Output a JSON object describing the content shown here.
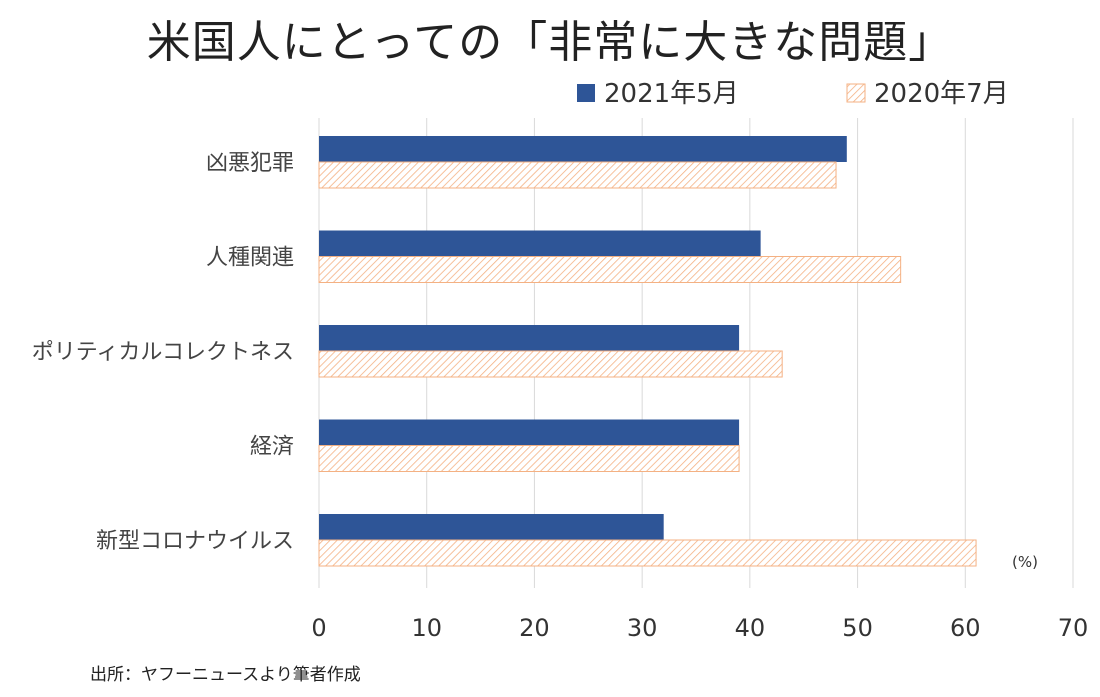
{
  "title": "米国人にとっての「非常に大きな問題」",
  "source": "出所：ヤフーニュースより筆者作成",
  "chart_data": {
    "type": "bar",
    "orientation": "horizontal",
    "title": "米国人にとっての「非常に大きな問題」",
    "categories": [
      "凶悪犯罪",
      "人種関連",
      "ポリティカルコレクトネス",
      "経済",
      "新型コロナウイルス"
    ],
    "series": [
      {
        "name": "2021年5月",
        "color": "#2e5597",
        "pattern": "solid",
        "values": [
          49,
          41,
          39,
          39,
          32
        ]
      },
      {
        "name": "2020年7月",
        "color": "#f4b183",
        "pattern": "hatched",
        "values": [
          48,
          54,
          43,
          39,
          61
        ]
      }
    ],
    "unit_label": "(%)",
    "xlim": [
      0,
      70
    ],
    "xticks": [
      0,
      10,
      20,
      30,
      40,
      50,
      60,
      70
    ],
    "grid": "vertical",
    "legend_position": "top-right"
  }
}
